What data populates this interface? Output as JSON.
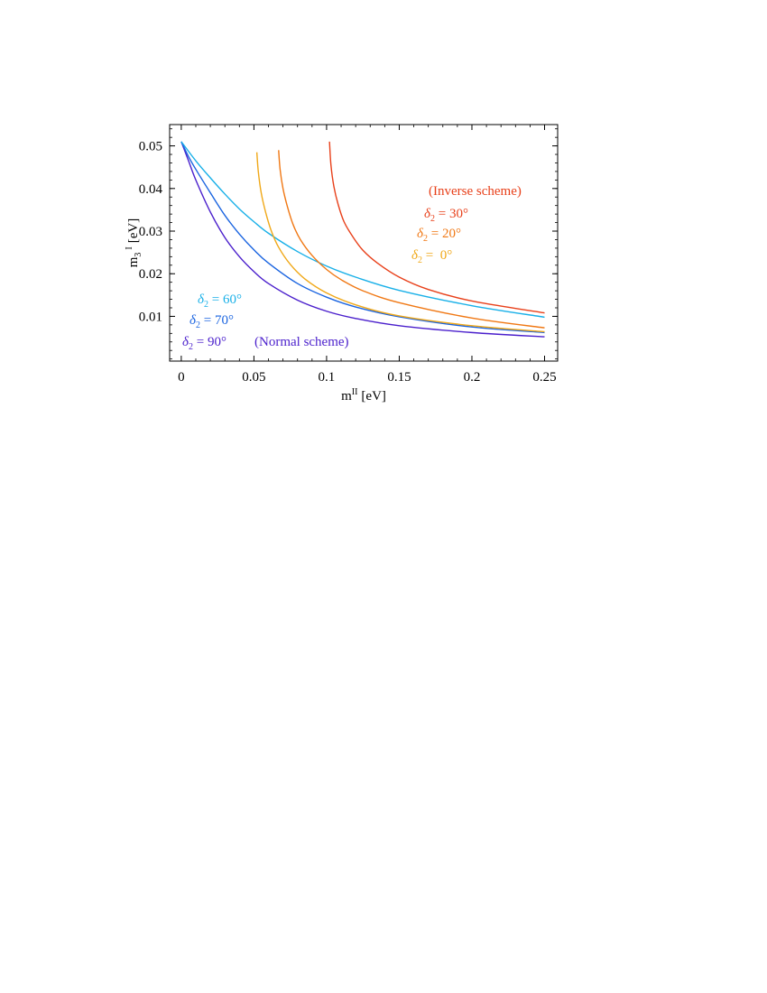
{
  "chart_data": {
    "type": "line",
    "xlabel": "m",
    "xlabel_sup": "II",
    "xlabel_unit": "[eV]",
    "ylabel": "m",
    "ylabel_sub": "3",
    "ylabel_sup": "I",
    "ylabel_unit": "[eV]",
    "xlim": [
      -0.008,
      0.259
    ],
    "ylim": [
      -0.0005,
      0.055
    ],
    "x_ticks": [
      0,
      0.05,
      0.1,
      0.15,
      0.2,
      0.25
    ],
    "x_tick_labels": [
      "0",
      "0.05",
      "0.1",
      "0.15",
      "0.2",
      "0.25"
    ],
    "y_ticks": [
      0.01,
      0.02,
      0.03,
      0.04,
      0.05
    ],
    "y_tick_labels": [
      "0.01",
      "0.02",
      "0.03",
      "0.04",
      "0.05"
    ],
    "grid": false,
    "series": [
      {
        "name": "δ2 = 90°",
        "color": "#4a1fcc",
        "x": [
          0,
          0.005,
          0.01,
          0.02,
          0.03,
          0.04,
          0.05,
          0.06,
          0.08,
          0.1,
          0.12,
          0.15,
          0.2,
          0.25
        ],
        "y": [
          0.051,
          0.0465,
          0.042,
          0.0345,
          0.0285,
          0.024,
          0.0205,
          0.0177,
          0.0138,
          0.0112,
          0.0095,
          0.0078,
          0.0062,
          0.0052
        ]
      },
      {
        "name": "δ2 = 70°",
        "color": "#1a64e0",
        "x": [
          0,
          0.005,
          0.01,
          0.02,
          0.03,
          0.04,
          0.05,
          0.06,
          0.08,
          0.1,
          0.12,
          0.15,
          0.2,
          0.25
        ],
        "y": [
          0.051,
          0.0475,
          0.0445,
          0.039,
          0.0337,
          0.0293,
          0.0256,
          0.0225,
          0.0177,
          0.0145,
          0.0122,
          0.0099,
          0.0075,
          0.0062
        ]
      },
      {
        "name": "δ2 = 60°",
        "color": "#19b0e8",
        "x": [
          0,
          0.01,
          0.02,
          0.03,
          0.04,
          0.05,
          0.06,
          0.08,
          0.1,
          0.12,
          0.15,
          0.2,
          0.25
        ],
        "y": [
          0.051,
          0.0465,
          0.0425,
          0.0387,
          0.0352,
          0.0322,
          0.0295,
          0.0252,
          0.0218,
          0.0192,
          0.0161,
          0.0125,
          0.0098
        ]
      },
      {
        "name": "δ2 = 0°",
        "color": "#f0a818",
        "x": [
          0.052,
          0.053,
          0.055,
          0.058,
          0.062,
          0.067,
          0.075,
          0.085,
          0.1,
          0.12,
          0.15,
          0.2,
          0.25
        ],
        "y": [
          0.0485,
          0.044,
          0.039,
          0.0345,
          0.03,
          0.0262,
          0.0222,
          0.0188,
          0.0155,
          0.0127,
          0.0101,
          0.0078,
          0.0064
        ]
      },
      {
        "name": "δ2 = 20°",
        "color": "#f07814",
        "x": [
          0.067,
          0.068,
          0.07,
          0.073,
          0.077,
          0.082,
          0.09,
          0.1,
          0.11,
          0.125,
          0.15,
          0.2,
          0.25
        ],
        "y": [
          0.049,
          0.0445,
          0.04,
          0.0358,
          0.0315,
          0.028,
          0.0243,
          0.021,
          0.0186,
          0.016,
          0.0132,
          0.0096,
          0.0073
        ]
      },
      {
        "name": "δ2 = 30°",
        "color": "#e8401a",
        "x": [
          0.102,
          0.103,
          0.105,
          0.108,
          0.112,
          0.118,
          0.125,
          0.135,
          0.15,
          0.17,
          0.2,
          0.25
        ],
        "y": [
          0.051,
          0.0455,
          0.0405,
          0.0362,
          0.0322,
          0.0287,
          0.0255,
          0.0225,
          0.0192,
          0.0163,
          0.0136,
          0.0108
        ]
      }
    ],
    "annotations": [
      {
        "text": "(Inverse scheme)",
        "color": "#e8401a"
      },
      {
        "sym": "δ",
        "sub": "2",
        "rest": " = 30°",
        "color": "#e8401a"
      },
      {
        "sym": "δ",
        "sub": "2",
        "rest": " = 20°",
        "color": "#f07814"
      },
      {
        "sym": "δ",
        "sub": "2",
        "rest": " =  0°",
        "color": "#f0a818"
      },
      {
        "sym": "δ",
        "sub": "2",
        "rest": " = 60°",
        "color": "#19b0e8"
      },
      {
        "sym": "δ",
        "sub": "2",
        "rest": " = 70°",
        "color": "#1a64e0"
      },
      {
        "sym": "δ",
        "sub": "2",
        "rest": " = 90°",
        "color": "#4a1fcc"
      },
      {
        "text": "(Normal scheme)",
        "color": "#4a1fcc"
      }
    ]
  }
}
